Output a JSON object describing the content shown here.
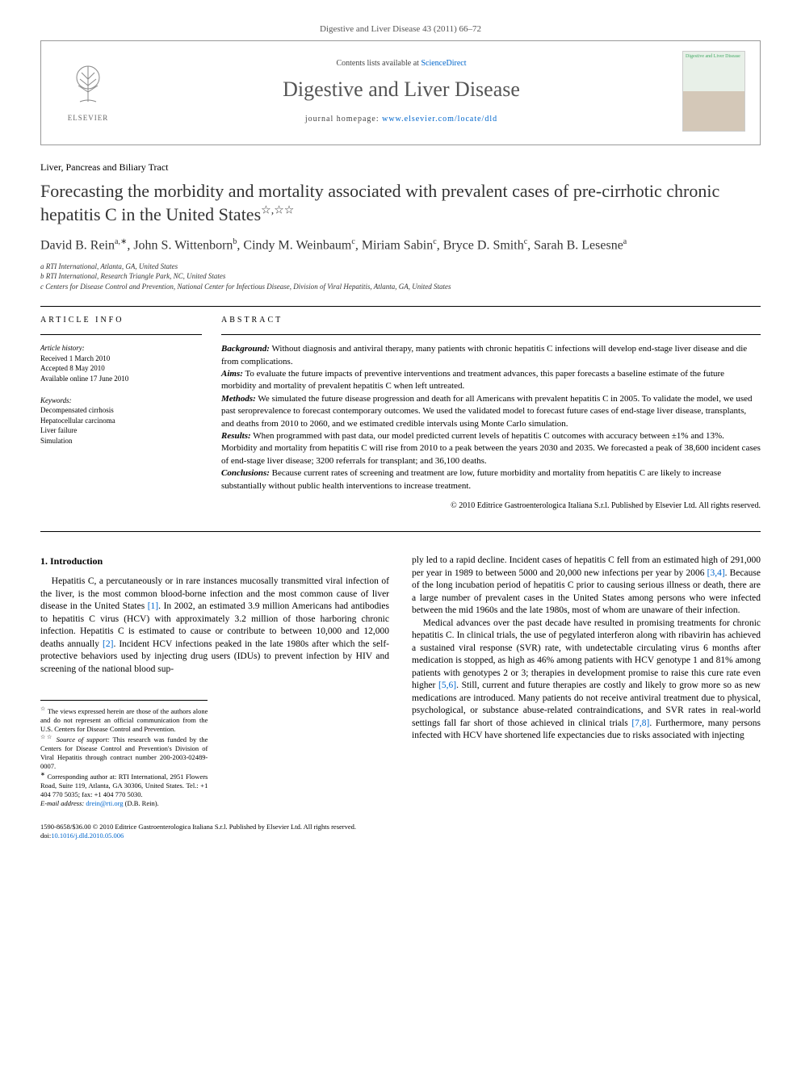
{
  "journal_ref": "Digestive and Liver Disease 43 (2011) 66–72",
  "header": {
    "contents_prefix": "Contents lists available at ",
    "contents_link": "ScienceDirect",
    "journal_name": "Digestive and Liver Disease",
    "homepage_prefix": "journal homepage: ",
    "homepage_url": "www.elsevier.com/locate/dld",
    "publisher": "ELSEVIER"
  },
  "section_label": "Liver, Pancreas and Biliary Tract",
  "title": "Forecasting the morbidity and mortality associated with prevalent cases of pre-cirrhotic chronic hepatitis C in the United States",
  "title_marks": "☆,☆☆",
  "authors_html": "David B. Rein<sup>a,∗</sup>, John S. Wittenborn<sup>b</sup>, Cindy M. Weinbaum<sup>c</sup>, Miriam Sabin<sup>c</sup>, Bryce D. Smith<sup>c</sup>, Sarah B. Lesesne<sup>a</sup>",
  "affiliations": [
    "a RTI International, Atlanta, GA, United States",
    "b RTI International, Research Triangle Park, NC, United States",
    "c Centers for Disease Control and Prevention, National Center for Infectious Disease, Division of Viral Hepatitis, Atlanta, GA, United States"
  ],
  "info": {
    "heading": "ARTICLE INFO",
    "history_label": "Article history:",
    "received": "Received 1 March 2010",
    "accepted": "Accepted 8 May 2010",
    "online": "Available online 17 June 2010",
    "keywords_label": "Keywords:",
    "keywords": [
      "Decompensated cirrhosis",
      "Hepatocellular carcinoma",
      "Liver failure",
      "Simulation"
    ]
  },
  "abstract": {
    "heading": "ABSTRACT",
    "background_label": "Background:",
    "background": " Without diagnosis and antiviral therapy, many patients with chronic hepatitis C infections will develop end-stage liver disease and die from complications.",
    "aims_label": "Aims:",
    "aims": " To evaluate the future impacts of preventive interventions and treatment advances, this paper forecasts a baseline estimate of the future morbidity and mortality of prevalent hepatitis C when left untreated.",
    "methods_label": "Methods:",
    "methods": " We simulated the future disease progression and death for all Americans with prevalent hepatitis C in 2005. To validate the model, we used past seroprevalence to forecast contemporary outcomes. We used the validated model to forecast future cases of end-stage liver disease, transplants, and deaths from 2010 to 2060, and we estimated credible intervals using Monte Carlo simulation.",
    "results_label": "Results:",
    "results": " When programmed with past data, our model predicted current levels of hepatitis C outcomes with accuracy between ±1% and 13%. Morbidity and mortality from hepatitis C will rise from 2010 to a peak between the years 2030 and 2035. We forecasted a peak of 38,600 incident cases of end-stage liver disease; 3200 referrals for transplant; and 36,100 deaths.",
    "conclusions_label": "Conclusions:",
    "conclusions": " Because current rates of screening and treatment are low, future morbidity and mortality from hepatitis C are likely to increase substantially without public health interventions to increase treatment.",
    "copyright": "© 2010 Editrice Gastroenterologica Italiana S.r.l. Published by Elsevier Ltd. All rights reserved."
  },
  "body": {
    "heading": "1. Introduction",
    "col1_p1_a": "Hepatitis C, a percutaneously or in rare instances mucosally transmitted viral infection of the liver, is the most common blood-borne infection and the most common cause of liver disease in the United States ",
    "col1_ref1": "[1]",
    "col1_p1_b": ". In 2002, an estimated 3.9 million Americans had antibodies to hepatitis C virus (HCV) with approximately 3.2 million of those harboring chronic infection. Hepatitis C is estimated to cause or contribute to between 10,000 and 12,000 deaths annually ",
    "col1_ref2": "[2]",
    "col1_p1_c": ". Incident HCV infections peaked in the late 1980s after which the self-protective behaviors used by injecting drug users (IDUs) to prevent infection by HIV and screening of the national blood sup-",
    "col2_p1_a": "ply led to a rapid decline. Incident cases of hepatitis C fell from an estimated high of 291,000 per year in 1989 to between 5000 and 20,000 new infections per year by 2006 ",
    "col2_ref34": "[3,4]",
    "col2_p1_b": ". Because of the long incubation period of hepatitis C prior to causing serious illness or death, there are a large number of prevalent cases in the United States among persons who were infected between the mid 1960s and the late 1980s, most of whom are unaware of their infection.",
    "col2_p2_a": "Medical advances over the past decade have resulted in promising treatments for chronic hepatitis C. In clinical trials, the use of pegylated interferon along with ribavirin has achieved a sustained viral response (SVR) rate, with undetectable circulating virus 6 months after medication is stopped, as high as 46% among patients with HCV genotype 1 and 81% among patients with genotypes 2 or 3; therapies in development promise to raise this cure rate even higher ",
    "col2_ref56": "[5,6]",
    "col2_p2_b": ". Still, current and future therapies are costly and likely to grow more so as new medications are introduced. Many patients do not receive antiviral treatment due to physical, psychological, or substance abuse-related contraindications, and SVR rates in real-world settings fall far short of those achieved in clinical trials ",
    "col2_ref78": "[7,8]",
    "col2_p2_c": ". Furthermore, many persons infected with HCV have shortened life expectancies due to risks associated with injecting"
  },
  "footnotes": {
    "fn1_mark": "☆",
    "fn1": " The views expressed herein are those of the authors alone and do not represent an official communication from the U.S. Centers for Disease Control and Prevention.",
    "fn2_mark": "☆☆",
    "fn2_label": " Source of support:",
    "fn2": " This research was funded by the Centers for Disease Control and Prevention's Division of Viral Hepatitis through contract number 200-2003-02489-0007.",
    "corr_mark": "∗",
    "corr": " Corresponding author at: RTI International, 2951 Flowers Road, Suite 119, Atlanta, GA 30306, United States. Tel.: +1 404 770 5035; fax: +1 404 770 5030.",
    "email_label": "E-mail address: ",
    "email": "drein@rti.org",
    "email_suffix": " (D.B. Rein)."
  },
  "footer": {
    "line1": "1590-8658/$36.00 © 2010 Editrice Gastroenterologica Italiana S.r.l. Published by Elsevier Ltd. All rights reserved.",
    "doi_label": "doi:",
    "doi": "10.1016/j.dld.2010.05.006"
  }
}
